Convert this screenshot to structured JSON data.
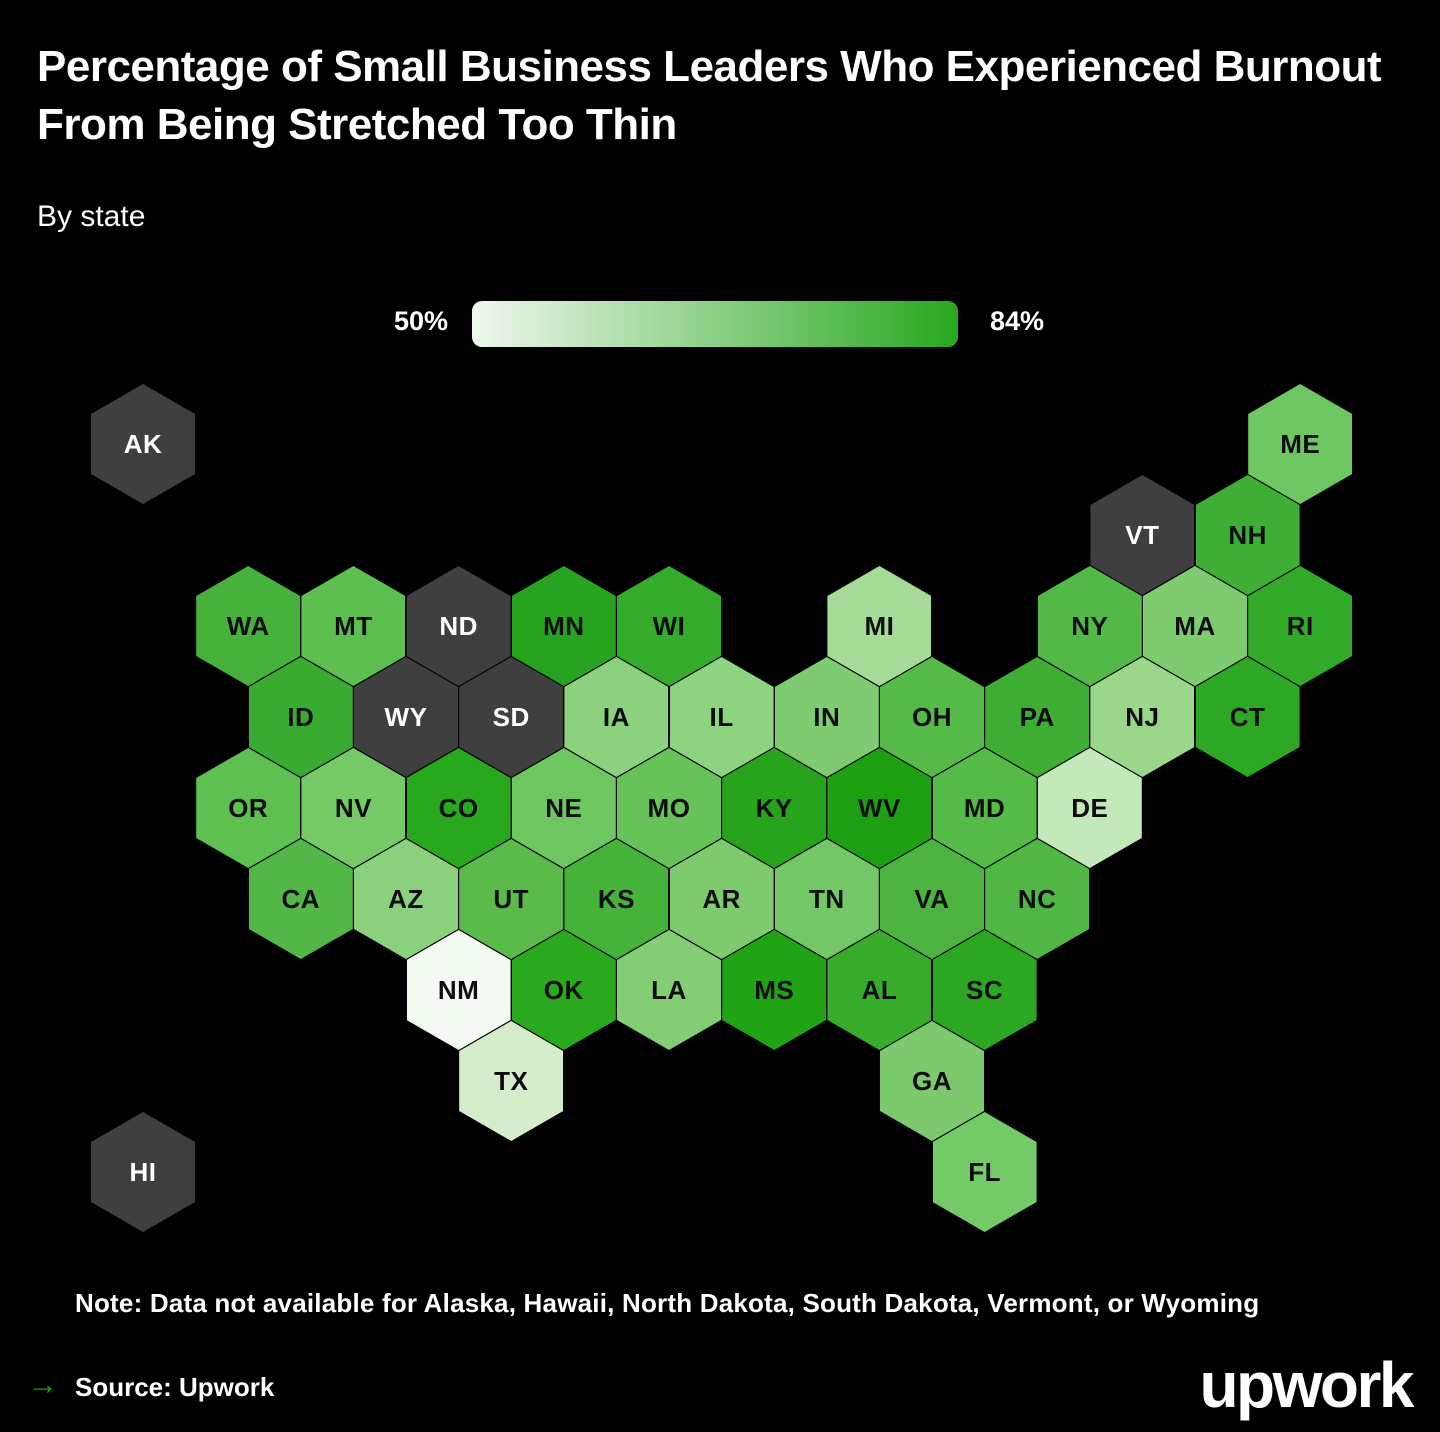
{
  "title": "Percentage of Small Business Leaders Who Experienced Burnout From Being Stretched Too Thin",
  "subtitle": "By state",
  "legend": {
    "min_label": "50%",
    "max_label": "84%",
    "gradient_start": "#f0f8ee",
    "gradient_end": "#27a81e"
  },
  "note": "Note: Data not available for Alaska, Hawaii, North Dakota, South Dakota, Vermont, or Wyoming",
  "footer": {
    "arrow_icon": "arrow-right",
    "arrow_color": "#14a800",
    "source_label": "Source: Upwork",
    "logo_text": "upwork"
  },
  "colors": {
    "background": "#000000",
    "no_data_fill": "#3f3f3f",
    "label_on_green": "#0d0d0d",
    "label_on_gray": "#ffffff"
  },
  "chart_data": {
    "type": "heatmap",
    "subtype": "hex-tile-cartogram",
    "title": "Percentage of Small Business Leaders Who Experienced Burnout From Being Stretched Too Thin",
    "scale": {
      "min_label": "50%",
      "max_label": "84%",
      "low_color": "#f0f8ee",
      "high_color": "#27a81e"
    },
    "legend_position": "top-center",
    "no_data_states": [
      "AK",
      "HI",
      "ND",
      "SD",
      "VT",
      "WY"
    ],
    "states": [
      {
        "abbr": "AK",
        "col": 0,
        "row": 0,
        "color": "#3f3f3f",
        "no_data": true
      },
      {
        "abbr": "ME",
        "col": 22,
        "row": 0,
        "color": "#6fc763",
        "no_data": false
      },
      {
        "abbr": "VT",
        "col": 19,
        "row": 1,
        "color": "#3f3f3f",
        "no_data": true
      },
      {
        "abbr": "NH",
        "col": 21,
        "row": 1,
        "color": "#3fae35",
        "no_data": false
      },
      {
        "abbr": "WA",
        "col": 2,
        "row": 2,
        "color": "#46b13b",
        "no_data": false
      },
      {
        "abbr": "MT",
        "col": 4,
        "row": 2,
        "color": "#5cbf50",
        "no_data": false
      },
      {
        "abbr": "ND",
        "col": 6,
        "row": 2,
        "color": "#3f3f3f",
        "no_data": true
      },
      {
        "abbr": "MN",
        "col": 8,
        "row": 2,
        "color": "#27a31f",
        "no_data": false
      },
      {
        "abbr": "WI",
        "col": 10,
        "row": 2,
        "color": "#35ab2c",
        "no_data": false
      },
      {
        "abbr": "MI",
        "col": 14,
        "row": 2,
        "color": "#a5db97",
        "no_data": false
      },
      {
        "abbr": "NY",
        "col": 18,
        "row": 2,
        "color": "#52b847",
        "no_data": false
      },
      {
        "abbr": "MA",
        "col": 20,
        "row": 2,
        "color": "#7ecc6f",
        "no_data": false
      },
      {
        "abbr": "RI",
        "col": 22,
        "row": 2,
        "color": "#32a929",
        "no_data": false
      },
      {
        "abbr": "ID",
        "col": 3,
        "row": 3,
        "color": "#3aab31",
        "no_data": false
      },
      {
        "abbr": "WY",
        "col": 5,
        "row": 3,
        "color": "#3f3f3f",
        "no_data": true
      },
      {
        "abbr": "SD",
        "col": 7,
        "row": 3,
        "color": "#3f3f3f",
        "no_data": true
      },
      {
        "abbr": "IA",
        "col": 9,
        "row": 3,
        "color": "#8cd17d",
        "no_data": false
      },
      {
        "abbr": "IL",
        "col": 11,
        "row": 3,
        "color": "#8ed480",
        "no_data": false
      },
      {
        "abbr": "IN",
        "col": 13,
        "row": 3,
        "color": "#7fcb71",
        "no_data": false
      },
      {
        "abbr": "OH",
        "col": 15,
        "row": 3,
        "color": "#55ba48",
        "no_data": false
      },
      {
        "abbr": "PA",
        "col": 17,
        "row": 3,
        "color": "#3dad33",
        "no_data": false
      },
      {
        "abbr": "NJ",
        "col": 19,
        "row": 3,
        "color": "#9ad78b",
        "no_data": false
      },
      {
        "abbr": "CT",
        "col": 21,
        "row": 3,
        "color": "#2ca824",
        "no_data": false
      },
      {
        "abbr": "OR",
        "col": 2,
        "row": 4,
        "color": "#5fc052",
        "no_data": false
      },
      {
        "abbr": "NV",
        "col": 4,
        "row": 4,
        "color": "#75c967",
        "no_data": false
      },
      {
        "abbr": "CO",
        "col": 6,
        "row": 4,
        "color": "#28a81d",
        "no_data": false
      },
      {
        "abbr": "NE",
        "col": 8,
        "row": 4,
        "color": "#6ec661",
        "no_data": false
      },
      {
        "abbr": "MO",
        "col": 10,
        "row": 4,
        "color": "#66c259",
        "no_data": false
      },
      {
        "abbr": "KY",
        "col": 12,
        "row": 4,
        "color": "#27a31c",
        "no_data": false
      },
      {
        "abbr": "WV",
        "col": 14,
        "row": 4,
        "color": "#1d9f12",
        "no_data": false
      },
      {
        "abbr": "MD",
        "col": 16,
        "row": 4,
        "color": "#55ba48",
        "no_data": false
      },
      {
        "abbr": "DE",
        "col": 18,
        "row": 4,
        "color": "#c3e8b9",
        "no_data": false
      },
      {
        "abbr": "CA",
        "col": 3,
        "row": 5,
        "color": "#52b746",
        "no_data": false
      },
      {
        "abbr": "AZ",
        "col": 5,
        "row": 5,
        "color": "#8bd07c",
        "no_data": false
      },
      {
        "abbr": "UT",
        "col": 7,
        "row": 5,
        "color": "#5abb4b",
        "no_data": false
      },
      {
        "abbr": "KS",
        "col": 9,
        "row": 5,
        "color": "#45b239",
        "no_data": false
      },
      {
        "abbr": "AR",
        "col": 11,
        "row": 5,
        "color": "#7ecb6e",
        "no_data": false
      },
      {
        "abbr": "TN",
        "col": 13,
        "row": 5,
        "color": "#74c766",
        "no_data": false
      },
      {
        "abbr": "VA",
        "col": 15,
        "row": 5,
        "color": "#4cb341",
        "no_data": false
      },
      {
        "abbr": "NC",
        "col": 17,
        "row": 5,
        "color": "#50b745",
        "no_data": false
      },
      {
        "abbr": "NM",
        "col": 6,
        "row": 6,
        "color": "#f3faf1",
        "no_data": false
      },
      {
        "abbr": "OK",
        "col": 8,
        "row": 6,
        "color": "#2aa81e",
        "no_data": false
      },
      {
        "abbr": "LA",
        "col": 10,
        "row": 6,
        "color": "#83cd74",
        "no_data": false
      },
      {
        "abbr": "MS",
        "col": 12,
        "row": 6,
        "color": "#21a316",
        "no_data": false
      },
      {
        "abbr": "AL",
        "col": 14,
        "row": 6,
        "color": "#37ac2b",
        "no_data": false
      },
      {
        "abbr": "SC",
        "col": 16,
        "row": 6,
        "color": "#2ba722",
        "no_data": false
      },
      {
        "abbr": "TX",
        "col": 7,
        "row": 7,
        "color": "#d5eccb",
        "no_data": false
      },
      {
        "abbr": "GA",
        "col": 15,
        "row": 7,
        "color": "#7cca6d",
        "no_data": false
      },
      {
        "abbr": "HI",
        "col": 0,
        "row": 8,
        "color": "#3f3f3f",
        "no_data": true
      },
      {
        "abbr": "FL",
        "col": 16,
        "row": 8,
        "color": "#74ca67",
        "no_data": false
      }
    ]
  }
}
